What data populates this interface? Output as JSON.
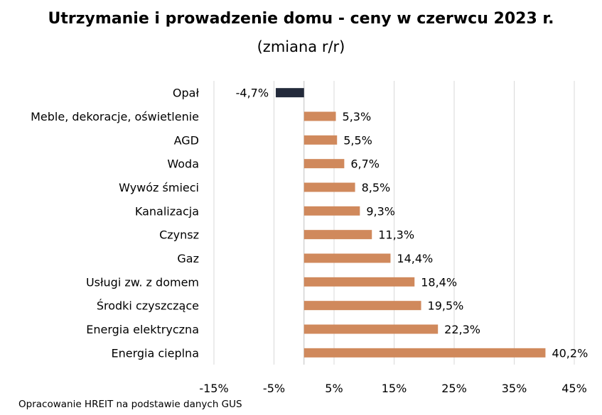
{
  "chart_data": {
    "type": "bar",
    "orientation": "horizontal",
    "title": "Utrzymanie i prowadzenie domu - ceny w czerwcu 2023 r.",
    "subtitle": "(zmiana r/r)",
    "categories": [
      "Opał",
      "Meble, dekoracje, oświetlenie",
      "AGD",
      "Woda",
      "Wywóz śmieci",
      "Kanalizacja",
      "Czynsz",
      "Gaz",
      "Usługi zw. z domem",
      "Środki czyszczące",
      "Energia elektryczna",
      "Energia cieplna"
    ],
    "values": [
      -4.7,
      5.3,
      5.5,
      6.7,
      8.5,
      9.3,
      11.3,
      14.4,
      18.4,
      19.5,
      22.3,
      40.2
    ],
    "value_labels": [
      "-4,7%",
      "5,3%",
      "5,5%",
      "6,7%",
      "8,5%",
      "9,3%",
      "11,3%",
      "14,4%",
      "18,4%",
      "19,5%",
      "22,3%",
      "40,2%"
    ],
    "xlim": [
      -15,
      45
    ],
    "xticks": [
      -15,
      -5,
      5,
      15,
      25,
      35,
      45
    ],
    "xtick_labels": [
      "-15%",
      "-5%",
      "5%",
      "15%",
      "25%",
      "35%",
      "45%"
    ],
    "grid": true,
    "colors": {
      "positive": "#d0895c",
      "negative": "#232a3b",
      "gridline": "#d9d9d9",
      "axis": "#bfbfbf"
    }
  },
  "footer": {
    "source": "Opracowanie HREIT na podstawie danych GUS"
  }
}
